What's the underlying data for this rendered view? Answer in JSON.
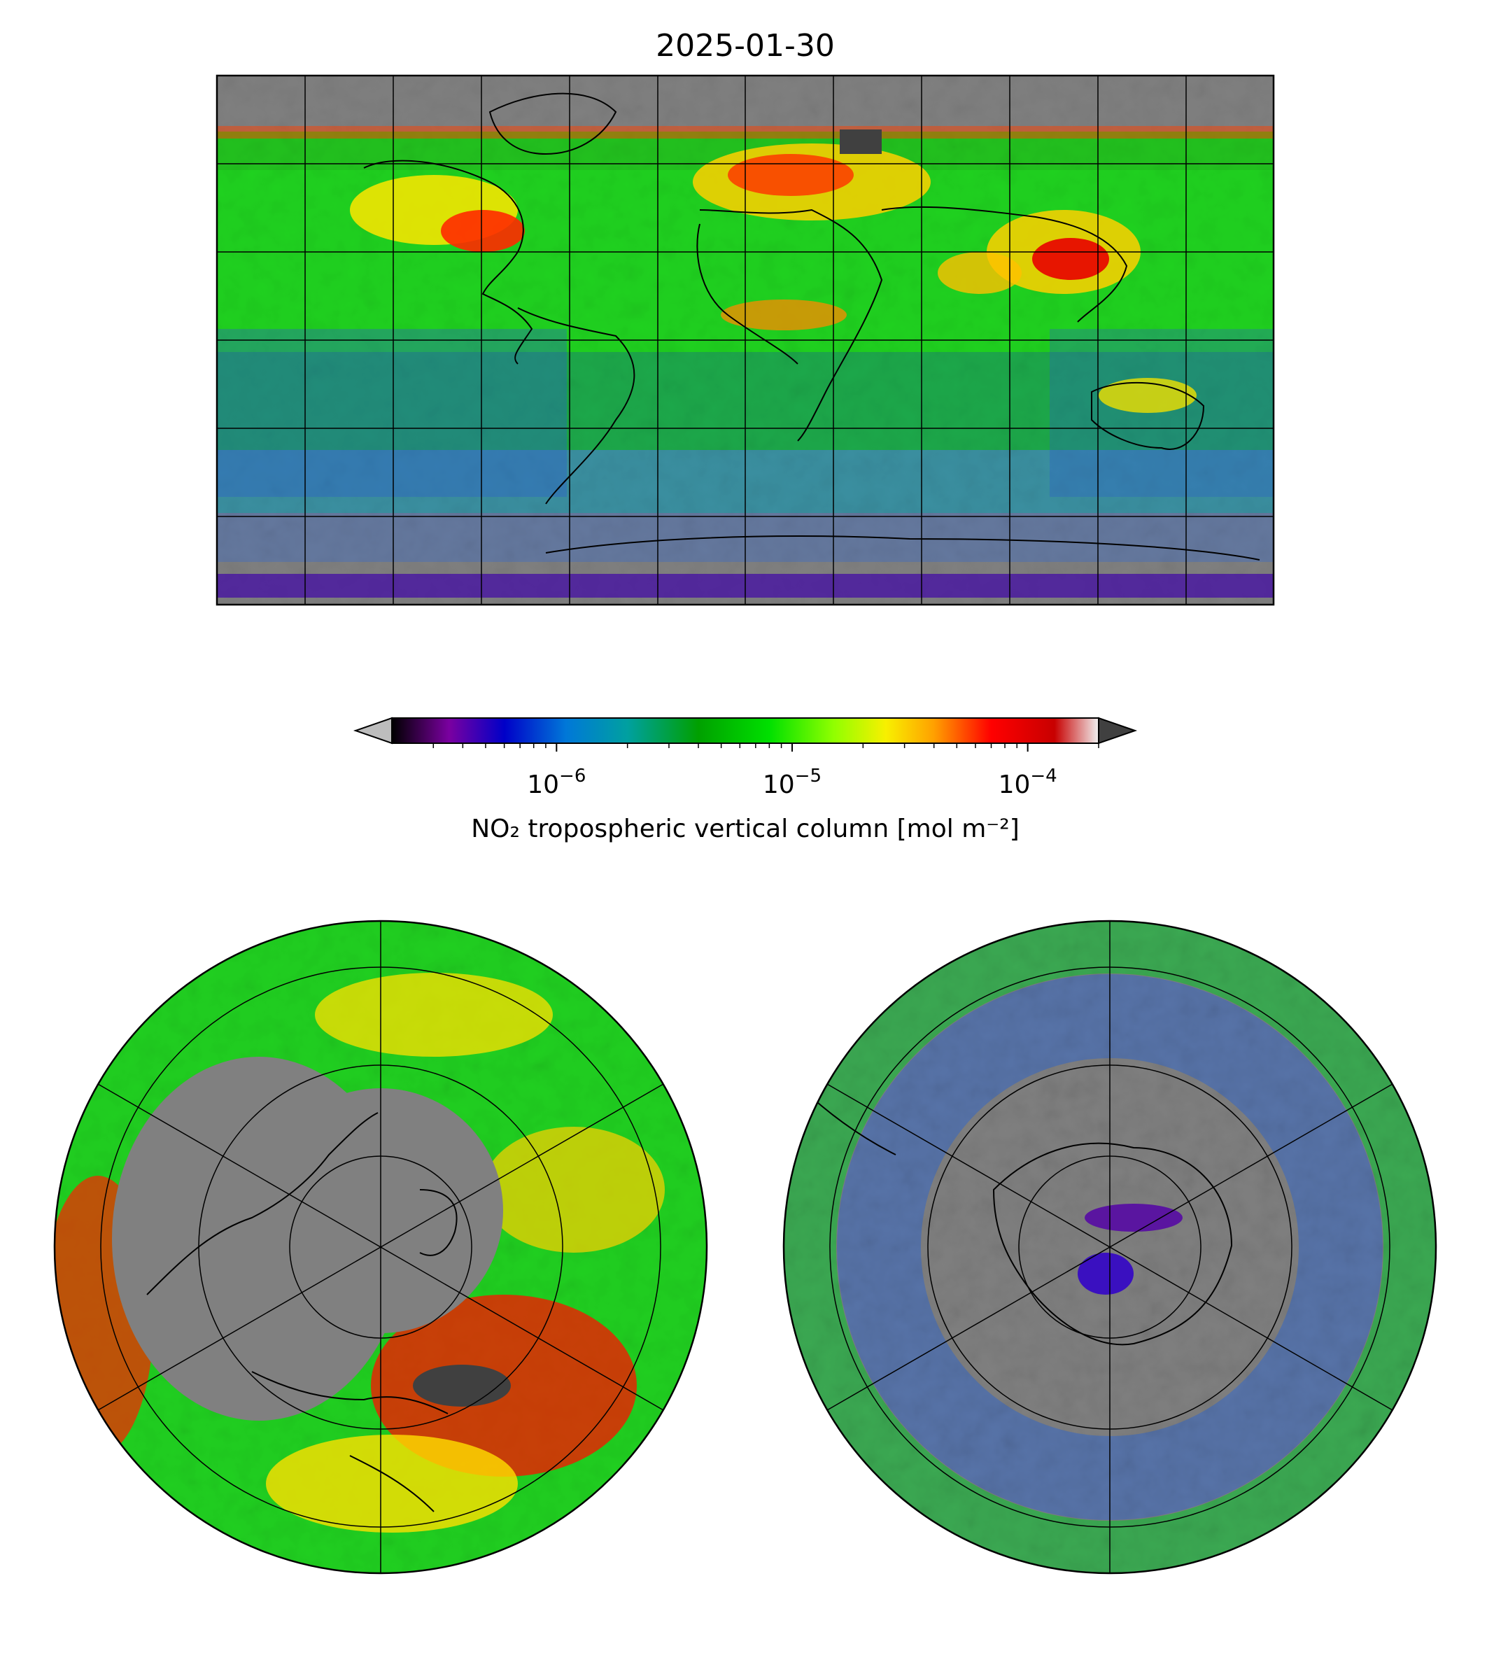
{
  "figure": {
    "title": "2025-01-30"
  },
  "colorbar": {
    "label": "NO₂ tropospheric vertical column [mol m⁻²]",
    "scale": "log",
    "vmin": 2e-07,
    "vmax": 0.0002,
    "extend": "both",
    "under_color": "#bdbdbd",
    "over_color": "#404040",
    "tick_labels": [
      {
        "value": 1e-06,
        "base": "10",
        "exp": "−6"
      },
      {
        "value": 1e-05,
        "base": "10",
        "exp": "−5"
      },
      {
        "value": 0.0001,
        "base": "10",
        "exp": "−4"
      }
    ],
    "colormap_stops": [
      {
        "value": 2e-07,
        "color": "#000000"
      },
      {
        "value": 3.5e-07,
        "color": "#7a00a0"
      },
      {
        "value": 6e-07,
        "color": "#0000c8"
      },
      {
        "value": 1.1e-06,
        "color": "#0078d8"
      },
      {
        "value": 2e-06,
        "color": "#00a0a0"
      },
      {
        "value": 4e-06,
        "color": "#00a000"
      },
      {
        "value": 8e-06,
        "color": "#00e000"
      },
      {
        "value": 1.5e-05,
        "color": "#90ff00"
      },
      {
        "value": 2.5e-05,
        "color": "#f8f000"
      },
      {
        "value": 4e-05,
        "color": "#ffa000"
      },
      {
        "value": 7e-05,
        "color": "#ff0000"
      },
      {
        "value": 0.00013,
        "color": "#c80000"
      },
      {
        "value": 0.0002,
        "color": "#f0f0f0"
      }
    ],
    "minor_ticks": [
      3e-07,
      4e-07,
      5e-07,
      6e-07,
      7e-07,
      8e-07,
      9e-07,
      2e-06,
      3e-06,
      4e-06,
      5e-06,
      6e-06,
      7e-06,
      8e-06,
      9e-06,
      2e-05,
      3e-05,
      4e-05,
      5e-05,
      6e-05,
      7e-05,
      8e-05,
      9e-05,
      0.0002
    ]
  },
  "maps": [
    {
      "name": "global",
      "projection": "equirectangular",
      "gridline_spacing_deg": 30
    },
    {
      "name": "north-polar",
      "projection": "north polar stereographic",
      "gridline_spacing_deg": 30
    },
    {
      "name": "south-polar",
      "projection": "south polar stereographic",
      "gridline_spacing_deg": 30
    }
  ],
  "colors": {
    "no_data": "#808080",
    "dark_saturation": "#404040",
    "coastline": "#000000",
    "gridline": "#000000"
  }
}
